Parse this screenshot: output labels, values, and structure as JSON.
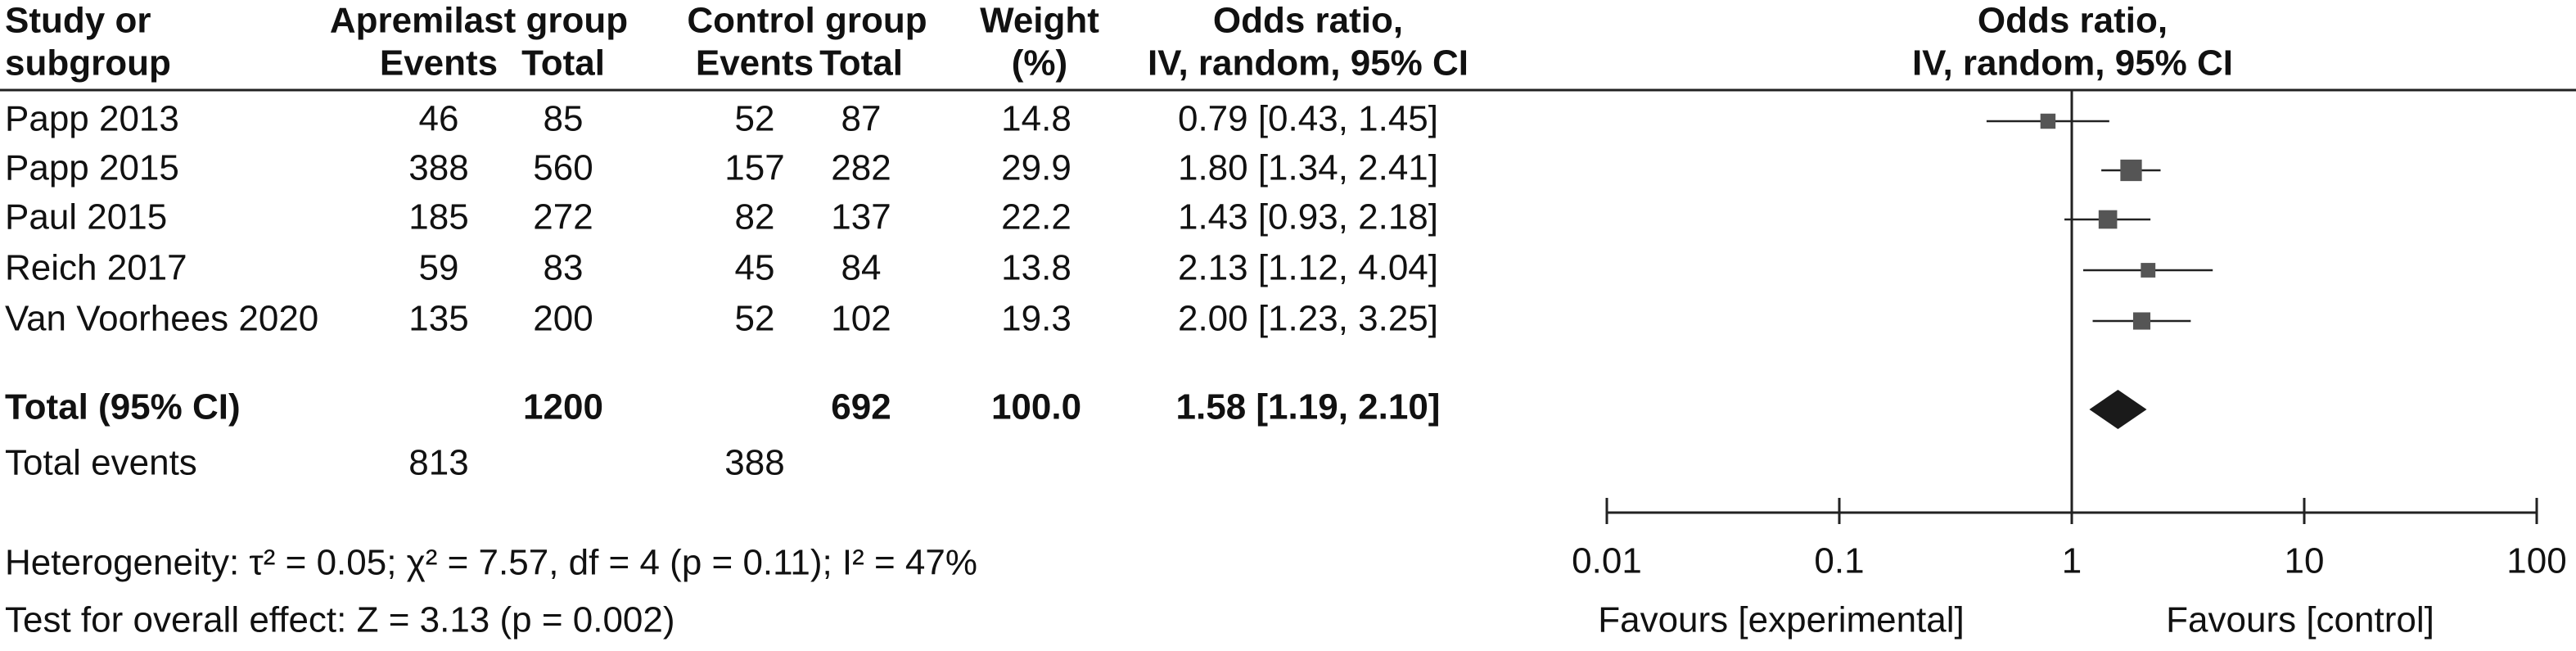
{
  "chart_data": {
    "type": "forest",
    "header": {
      "study": [
        "Study or",
        "subgroup"
      ],
      "group1": "Apremilast group",
      "group2": "Control group",
      "events": "Events",
      "total": "Total",
      "weight": [
        "Weight",
        "(%)"
      ],
      "effect": [
        "Odds ratio,",
        "IV, random, 95% CI"
      ],
      "plot": [
        "Odds ratio,",
        "IV, random, 95% CI"
      ]
    },
    "studies": [
      {
        "name": "Papp 2013",
        "events1": 46,
        "total1": 85,
        "events2": 52,
        "total2": 87,
        "weight": 14.8,
        "or": 0.79,
        "ci_low": 0.43,
        "ci_high": 1.45,
        "or_label": "0.79 [0.43, 1.45]"
      },
      {
        "name": "Papp 2015",
        "events1": 388,
        "total1": 560,
        "events2": 157,
        "total2": 282,
        "weight": 29.9,
        "or": 1.8,
        "ci_low": 1.34,
        "ci_high": 2.41,
        "or_label": "1.80 [1.34, 2.41]"
      },
      {
        "name": "Paul 2015",
        "events1": 185,
        "total1": 272,
        "events2": 82,
        "total2": 137,
        "weight": 22.2,
        "or": 1.43,
        "ci_low": 0.93,
        "ci_high": 2.18,
        "or_label": "1.43 [0.93, 2.18]"
      },
      {
        "name": "Reich 2017",
        "events1": 59,
        "total1": 83,
        "events2": 45,
        "total2": 84,
        "weight": 13.8,
        "or": 2.13,
        "ci_low": 1.12,
        "ci_high": 4.04,
        "or_label": "2.13 [1.12, 4.04]"
      },
      {
        "name": "Van Voorhees 2020",
        "events1": 135,
        "total1": 200,
        "events2": 52,
        "total2": 102,
        "weight": 19.3,
        "or": 2.0,
        "ci_low": 1.23,
        "ci_high": 3.25,
        "or_label": "2.00 [1.23, 3.25]"
      }
    ],
    "total": {
      "name": "Total (95% CI)",
      "total1": 1200,
      "total2": 692,
      "weight_label": "100.0",
      "or": 1.58,
      "ci_low": 1.19,
      "ci_high": 2.1,
      "or_label": "1.58 [1.19, 2.10]"
    },
    "total_events": {
      "name": "Total events",
      "events1": 813,
      "events2": 388
    },
    "heterogeneity": "Heterogeneity: τ² = 0.05; χ² = 7.57, df = 4 (p = 0.11); I² = 47%",
    "overall_effect": "Test for overall effect: Z = 3.13 (p = 0.002)",
    "log_scale": true,
    "xlim": [
      0.01,
      100
    ],
    "xticks": [
      0.01,
      0.1,
      1,
      10,
      100
    ],
    "favours_left": "Favours [experimental]",
    "favours_right": "Favours [control]",
    "marker_color": "#555555",
    "line_color": "#222222",
    "diamond_color": "#1a1a1a"
  }
}
